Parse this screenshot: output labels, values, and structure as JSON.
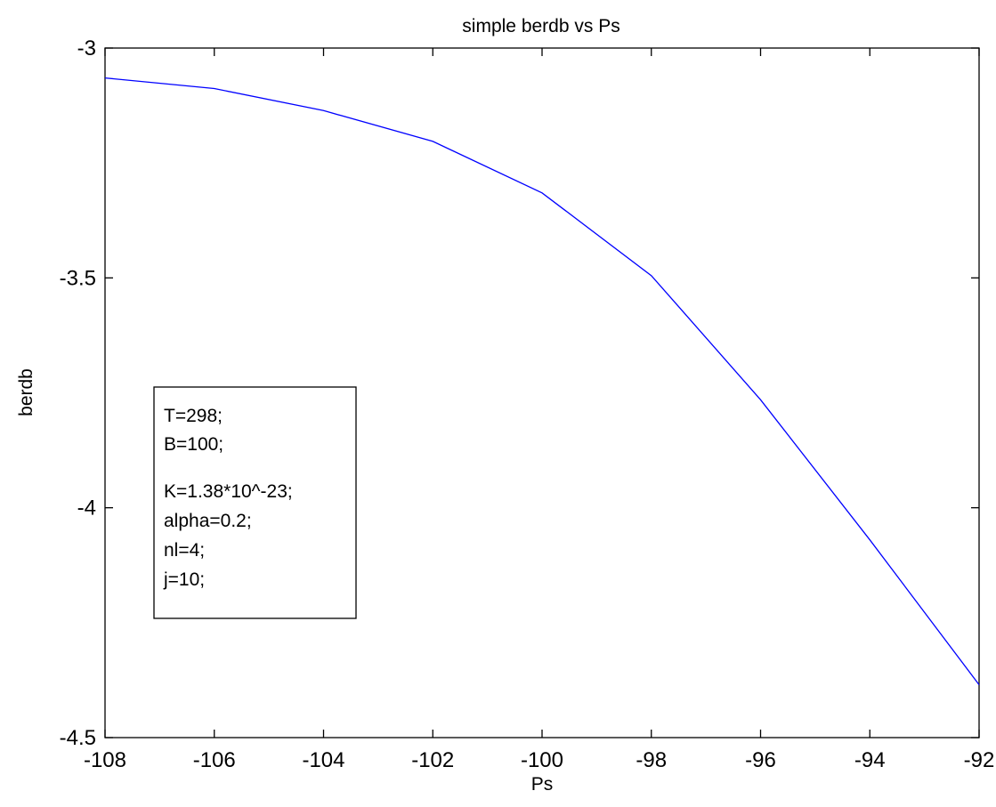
{
  "chart_data": {
    "type": "line",
    "title": "simple berdb vs Ps",
    "xlabel": "Ps",
    "ylabel": "berdb",
    "xlim": [
      -108,
      -92
    ],
    "ylim": [
      -4.5,
      -3
    ],
    "xticks": [
      -108,
      -106,
      -104,
      -102,
      -100,
      -98,
      -96,
      -94,
      -92
    ],
    "yticks": [
      -4.5,
      -4,
      -3.5,
      -3
    ],
    "grid": false,
    "series": [
      {
        "color": "#0000ff",
        "x": [
          -108,
          -106,
          -104,
          -102,
          -100,
          -98,
          -96,
          -94,
          -92
        ],
        "y": [
          -3.065,
          -3.088,
          -3.136,
          -3.203,
          -3.315,
          -3.495,
          -3.765,
          -4.07,
          -4.385
        ]
      }
    ],
    "annotation": {
      "lines": [
        "T=298;",
        "B=100;",
        "K=1.38*10^-23;",
        "alpha=0.2;",
        "nl=4;",
        "j=10;"
      ]
    }
  }
}
